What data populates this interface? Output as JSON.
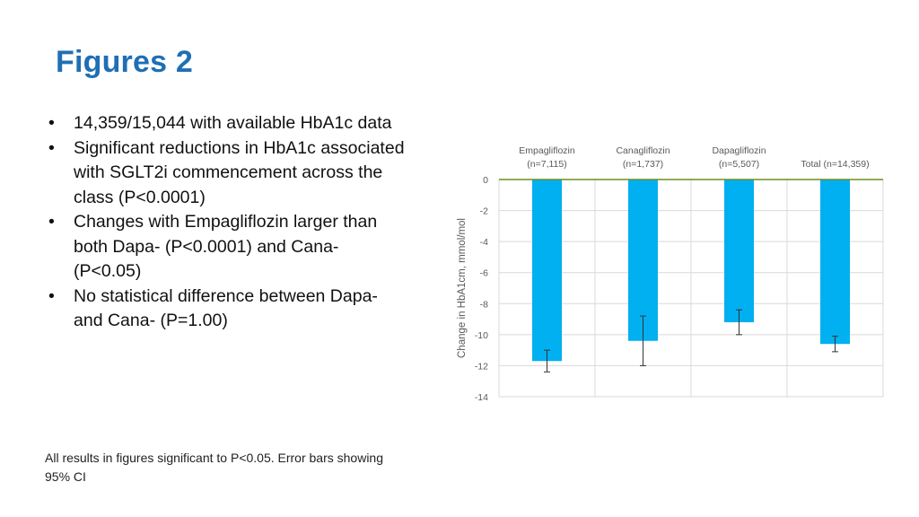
{
  "slide": {
    "title": "Figures 2",
    "bullets": [
      "14,359/15,044 with available HbA1c data",
      "Significant reductions in HbA1c associated with SGLT2i commencement across the class (P<0.0001)",
      "Changes with Empagliflozin larger than both Dapa- (P<0.0001) and Cana- (P<0.05)",
      "No statistical difference between Dapa- and Cana- (P=1.00)"
    ],
    "footnote": "All results in figures significant to P<0.05. Error bars showing 95% CI"
  },
  "chart_data": {
    "type": "bar",
    "categories": [
      [
        "Empagliflozin",
        "(n=7,115)"
      ],
      [
        "Canagliflozin",
        "(n=1,737)"
      ],
      [
        "Dapagliflozin",
        "(n=5,507)"
      ],
      [
        "Total (n=14,359)"
      ]
    ],
    "values": [
      -11.7,
      -10.4,
      -9.2,
      -10.6
    ],
    "error_low": [
      -12.4,
      -12.0,
      -10.0,
      -11.1
    ],
    "error_high": [
      -11.0,
      -8.8,
      -8.4,
      -10.1
    ],
    "ylabel": "Change in HbA1cm, mmol/mol",
    "ylim": [
      -14,
      0
    ],
    "yticks": [
      0,
      -2,
      -4,
      -6,
      -8,
      -10,
      -12,
      -14
    ],
    "category_label_position": "top",
    "grid": true,
    "colors": {
      "bar": "#00b0f0",
      "axis": "#6b8e23",
      "grid": "#d9d9d9",
      "error": "#333333",
      "tick_text": "#595959"
    }
  }
}
